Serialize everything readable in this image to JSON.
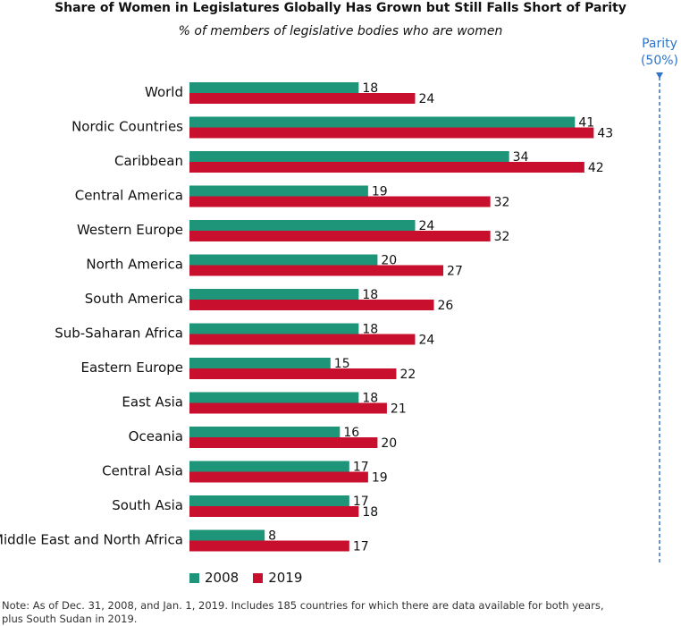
{
  "title": "Share of Women in Legislatures Globally Has Grown but Still Falls Short of Parity",
  "subtitle": "% of members of legislative bodies who are women",
  "note": "Note: As of Dec. 31, 2008, and Jan. 1, 2019. Includes 185 countries for which there are data available for both years, plus South Sudan in 2019.",
  "colors": {
    "s2008": "#1e9479",
    "s2019": "#c8102e",
    "parity": "#2e74c9"
  },
  "chart_data": {
    "type": "bar",
    "orientation": "horizontal",
    "title": "Share of Women in Legislatures Globally Has Grown but Still Falls Short of Parity",
    "subtitle": "% of members of legislative bodies who are women",
    "categories": [
      "World",
      "Nordic Countries",
      "Caribbean",
      "Central America",
      "Western Europe",
      "North America",
      "South America",
      "Sub-Saharan Africa",
      "Eastern Europe",
      "East Asia",
      "Oceania",
      "Central Asia",
      "South Asia",
      "Middle East and North Africa"
    ],
    "series": [
      {
        "name": "2008",
        "values": [
          18,
          41,
          34,
          19,
          24,
          20,
          18,
          18,
          15,
          18,
          16,
          17,
          17,
          8
        ]
      },
      {
        "name": "2019",
        "values": [
          24,
          43,
          42,
          32,
          32,
          27,
          26,
          24,
          22,
          21,
          20,
          19,
          18,
          17
        ]
      }
    ],
    "xlim": [
      0,
      50
    ],
    "reference_line": {
      "value": 50,
      "label_line1": "Parity",
      "label_line2": "(50%)"
    },
    "legend_position": "bottom-left",
    "grid": false
  }
}
